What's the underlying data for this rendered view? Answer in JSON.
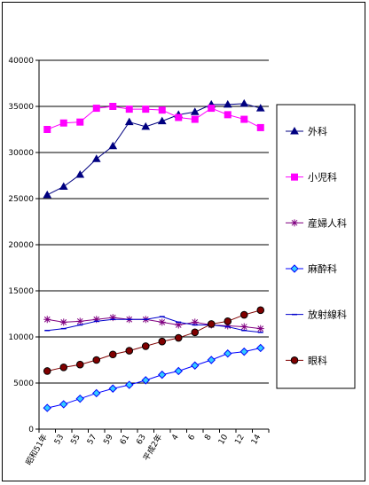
{
  "chart_data": {
    "type": "line",
    "title": "",
    "xlabel": "",
    "ylabel": "",
    "ylim": [
      0,
      40000
    ],
    "yticks": [
      0,
      5000,
      10000,
      15000,
      20000,
      25000,
      30000,
      35000,
      40000
    ],
    "ytick_labels": [
      "0",
      "5000",
      "10000",
      "15000",
      "20000",
      "25000",
      "30000",
      "35000",
      "40000"
    ],
    "grid": true,
    "legend_position": "right",
    "x_tick_labels": [
      "昭和51年",
      "53",
      "55",
      "57",
      "59",
      "61",
      "63",
      "平成2年",
      "4",
      "6",
      "8",
      "10",
      "12",
      "14"
    ],
    "series": [
      {
        "name": "外科",
        "color": "#000080",
        "marker": "triangle",
        "marker_fill": "#000080",
        "values": [
          25400,
          26300,
          27600,
          29300,
          30700,
          33300,
          32800,
          33400,
          34100,
          34400,
          35200,
          35200,
          35300,
          34800
        ]
      },
      {
        "name": "小児科",
        "color": "#ff00ff",
        "marker": "square",
        "marker_fill": "#ff00ff",
        "values": [
          32500,
          33200,
          33300,
          34800,
          35000,
          34700,
          34700,
          34600,
          33800,
          33600,
          34800,
          34100,
          33600,
          32700
        ]
      },
      {
        "name": "産婦人科",
        "color": "#800080",
        "marker": "star",
        "marker_fill": "#800080",
        "values": [
          11900,
          11600,
          11700,
          11900,
          12100,
          11900,
          11900,
          11600,
          11300,
          11600,
          11300,
          11200,
          11100,
          10900
        ]
      },
      {
        "name": "麻酔科",
        "color": "#0000ff",
        "marker": "diamond",
        "marker_fill": "#33ccff",
        "values": [
          2300,
          2700,
          3300,
          3900,
          4400,
          4800,
          5300,
          5900,
          6300,
          6900,
          7500,
          8200,
          8400,
          8800
        ]
      },
      {
        "name": "放射線科",
        "color": "#0000cc",
        "marker": "dash",
        "marker_fill": "#0000cc",
        "values": [
          10700,
          10900,
          11300,
          11700,
          11900,
          11900,
          11900,
          12200,
          11600,
          11300,
          11300,
          11100,
          10700,
          10500
        ]
      },
      {
        "name": "眼科",
        "color": "#800000",
        "marker": "circle",
        "marker_fill": "#800000",
        "values": [
          6300,
          6700,
          7000,
          7500,
          8100,
          8500,
          9000,
          9500,
          9900,
          10500,
          11400,
          11700,
          12400,
          12900
        ]
      }
    ]
  }
}
